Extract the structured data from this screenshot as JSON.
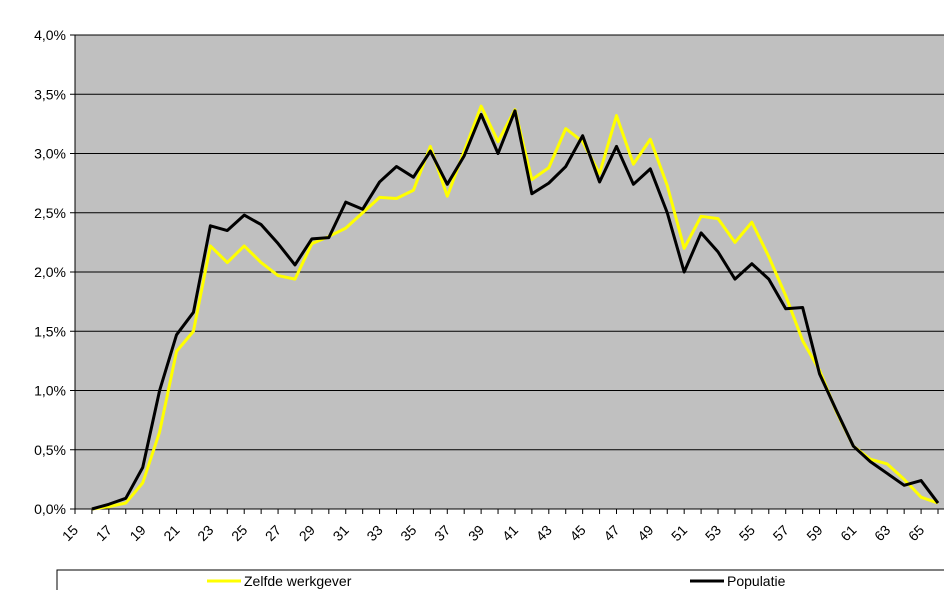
{
  "chart_data": {
    "type": "line",
    "categories": [
      "15",
      null,
      "17",
      null,
      "19",
      null,
      "21",
      null,
      "23",
      null,
      "25",
      null,
      "27",
      null,
      "29",
      null,
      "31",
      null,
      "33",
      null,
      "35",
      null,
      "37",
      null,
      "39",
      null,
      "41",
      null,
      "43",
      null,
      "45",
      null,
      "47",
      null,
      "49",
      null,
      "51",
      null,
      "53",
      null,
      "55",
      null,
      "57",
      null,
      "59",
      null,
      "61",
      null,
      "63",
      null,
      "65",
      null
    ],
    "series": [
      {
        "name": "Zelfde werkgever",
        "color": "#ffff00",
        "values": [
          null,
          0,
          0.02,
          0.05,
          0.22,
          0.65,
          1.33,
          1.5,
          2.22,
          2.08,
          2.22,
          2.08,
          1.97,
          1.94,
          2.24,
          2.3,
          2.37,
          2.5,
          2.63,
          2.62,
          2.69,
          3.06,
          2.64,
          3.02,
          3.4,
          3.1,
          3.37,
          2.78,
          2.88,
          3.21,
          3.1,
          2.83,
          3.32,
          2.91,
          3.12,
          2.73,
          2.2,
          2.47,
          2.45,
          2.25,
          2.42,
          2.13,
          1.8,
          1.42,
          1.17,
          0.82,
          0.53,
          0.42,
          0.38,
          0.25,
          0.1,
          0.05
        ]
      },
      {
        "name": "Populatie",
        "color": "#000000",
        "values": [
          null,
          0,
          0.04,
          0.09,
          0.35,
          1.0,
          1.47,
          1.66,
          2.39,
          2.35,
          2.48,
          2.4,
          2.24,
          2.06,
          2.28,
          2.29,
          2.59,
          2.53,
          2.76,
          2.89,
          2.8,
          3.02,
          2.74,
          2.98,
          3.33,
          3.0,
          3.36,
          2.66,
          2.75,
          2.89,
          3.15,
          2.76,
          3.06,
          2.74,
          2.87,
          2.5,
          2.0,
          2.33,
          2.17,
          1.94,
          2.07,
          1.94,
          1.69,
          1.7,
          1.14,
          0.83,
          0.53,
          0.4,
          0.3,
          0.2,
          0.24,
          0.05
        ]
      }
    ],
    "ylim": [
      0,
      4
    ],
    "yticks": [
      {
        "value": 0,
        "label": "0,0%"
      },
      {
        "value": 0.5,
        "label": "0,5%"
      },
      {
        "value": 1,
        "label": "1,0%"
      },
      {
        "value": 1.5,
        "label": "1,5%"
      },
      {
        "value": 2,
        "label": "2,0%"
      },
      {
        "value": 2.5,
        "label": "2,5%"
      },
      {
        "value": 3,
        "label": "3,0%"
      },
      {
        "value": 3.5,
        "label": "3,5%"
      },
      {
        "value": 4,
        "label": "4,0%"
      }
    ],
    "grid": true,
    "plot_background": "#c0c0c0",
    "legend": "bottom"
  }
}
